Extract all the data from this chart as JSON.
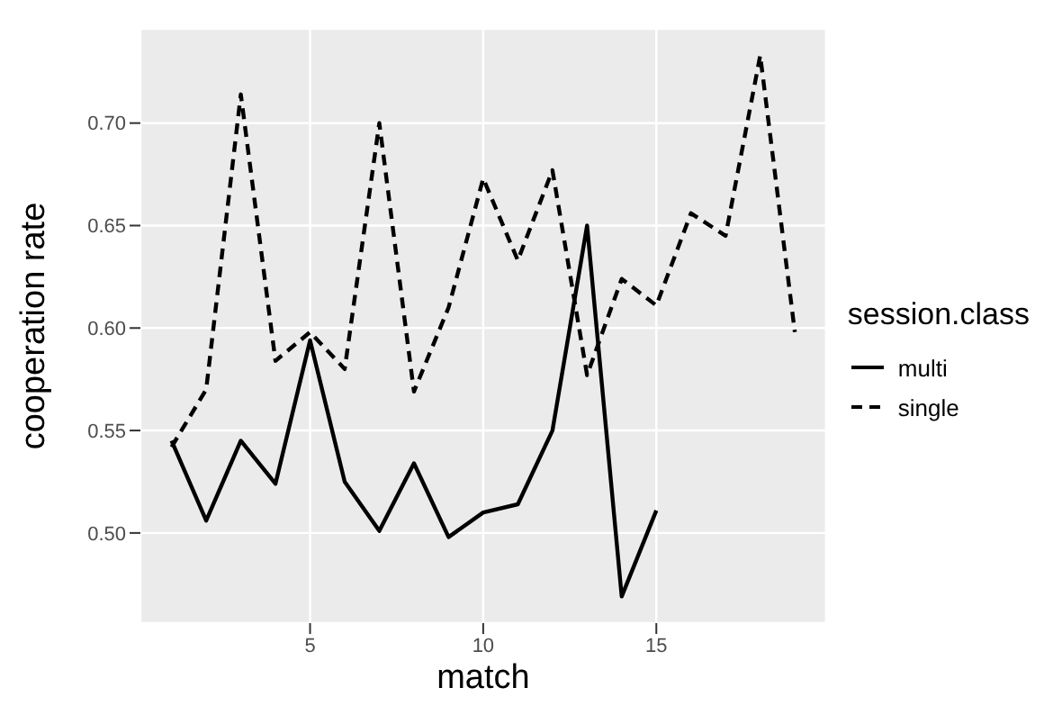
{
  "chart_data": {
    "type": "line",
    "xlabel": "match",
    "ylabel": "cooperation rate",
    "legend_title": "session.class",
    "legend": "right",
    "grid": true,
    "marker": "none",
    "x": [
      1,
      2,
      3,
      4,
      5,
      6,
      7,
      8,
      9,
      10,
      11,
      12,
      13,
      14,
      15,
      16,
      17,
      18,
      19
    ],
    "xlim": [
      0.1,
      19.9
    ],
    "xticks": [
      5,
      10,
      15
    ],
    "ylim": [
      0.456,
      0.746
    ],
    "yticks": [
      {
        "value": 0.5,
        "label": "0.50"
      },
      {
        "value": 0.55,
        "label": "0.55"
      },
      {
        "value": 0.6,
        "label": "0.60"
      },
      {
        "value": 0.65,
        "label": "0.65"
      },
      {
        "value": 0.7,
        "label": "0.70"
      }
    ],
    "series": [
      {
        "name": "multi",
        "color": "#000000",
        "line_style": "solid",
        "values": [
          0.545,
          0.506,
          0.545,
          0.524,
          0.594,
          0.525,
          0.501,
          0.534,
          0.498,
          0.51,
          0.514,
          0.55,
          0.65,
          0.469,
          0.511,
          null,
          null,
          null,
          null
        ]
      },
      {
        "name": "single",
        "color": "#000000",
        "line_style": "dashed",
        "values": [
          0.542,
          0.57,
          0.714,
          0.584,
          0.598,
          0.58,
          0.7,
          0.569,
          0.61,
          0.673,
          0.633,
          0.677,
          0.577,
          0.624,
          0.611,
          0.656,
          0.645,
          0.733,
          0.598
        ]
      }
    ]
  }
}
